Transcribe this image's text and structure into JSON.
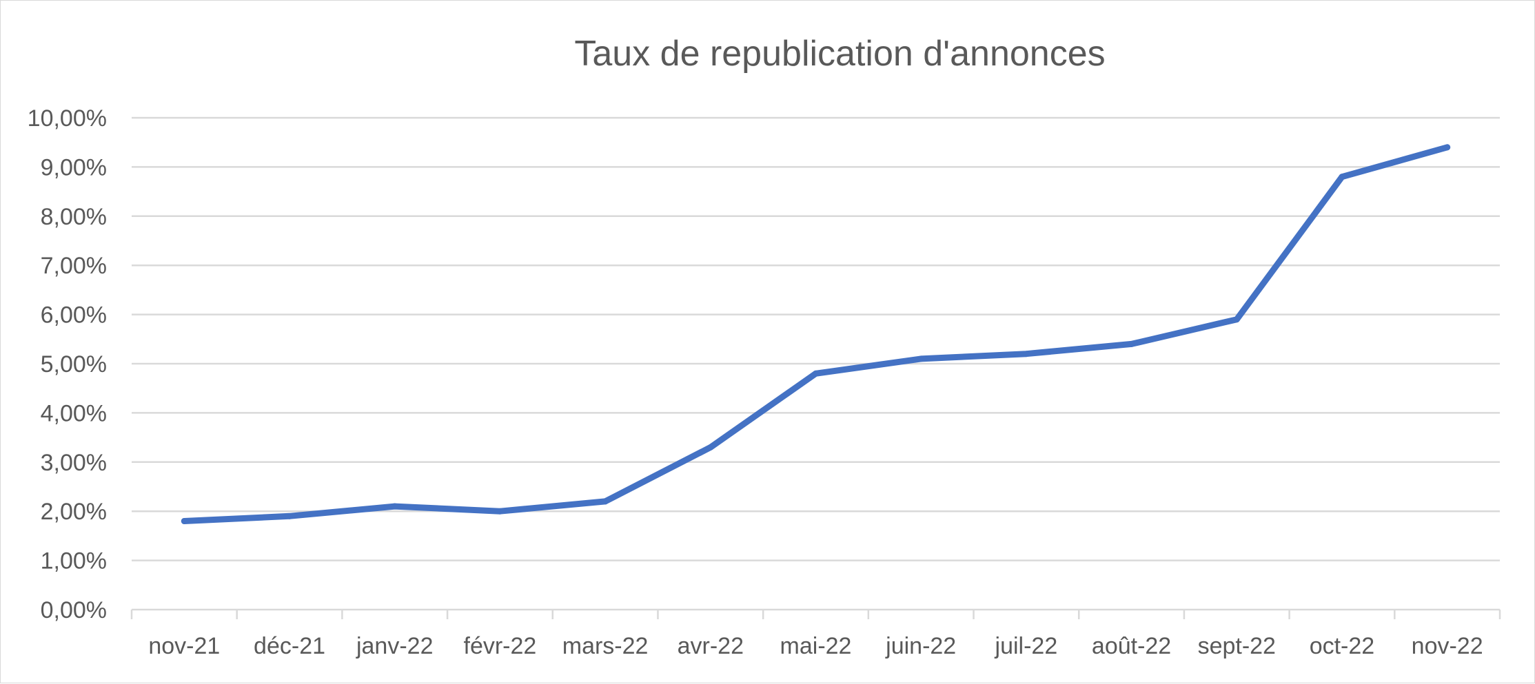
{
  "chart_data": {
    "type": "line",
    "title": "Taux de republication d'annonces",
    "categories": [
      "nov-21",
      "déc-21",
      "janv-22",
      "févr-22",
      "mars-22",
      "avr-22",
      "mai-22",
      "juin-22",
      "juil-22",
      "août-22",
      "sept-22",
      "oct-22",
      "nov-22"
    ],
    "series": [
      {
        "values": [
          1.8,
          1.9,
          2.1,
          2.0,
          2.2,
          3.3,
          4.8,
          5.1,
          5.2,
          5.4,
          5.9,
          8.8,
          9.4
        ],
        "color": "#4472c4"
      }
    ],
    "ylim": [
      0,
      10
    ],
    "yticks": [
      0,
      1,
      2,
      3,
      4,
      5,
      6,
      7,
      8,
      9,
      10
    ],
    "ytick_labels": [
      "0,00%",
      "1,00%",
      "2,00%",
      "3,00%",
      "4,00%",
      "5,00%",
      "6,00%",
      "7,00%",
      "8,00%",
      "9,00%",
      "10,00%"
    ],
    "grid": true,
    "legend": "none",
    "colors": {
      "text": "#595959",
      "grid": "#d9d9d9",
      "border": "#d9d9d9"
    }
  }
}
